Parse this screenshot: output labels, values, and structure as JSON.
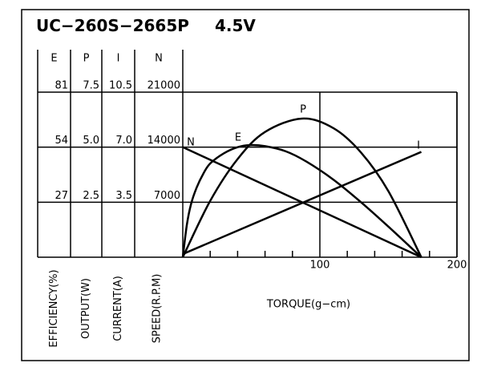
{
  "chart_data": {
    "type": "line",
    "title": "UC−260S−2665P",
    "subtitle": "4.5V",
    "x_label": "TORQUE(g−cm)",
    "xlim": [
      0,
      200
    ],
    "xticks": [
      100,
      200
    ],
    "xminorticks": [
      20,
      40,
      60,
      80,
      120,
      140,
      160,
      180
    ],
    "grid": true,
    "series": [
      {
        "name": "E",
        "axis_label": "EFFICIENCY(%)",
        "color": "#000000",
        "ylim": [
          0,
          81
        ],
        "yticks": [
          27,
          54,
          81
        ],
        "x": [
          0,
          3,
          6,
          10,
          15,
          20,
          30,
          40,
          49,
          60,
          75,
          90,
          110,
          130,
          150,
          174
        ],
        "values": [
          0,
          16,
          26,
          34,
          41,
          46,
          51,
          54,
          55,
          54.5,
          52,
          47,
          38,
          27,
          15,
          0
        ]
      },
      {
        "name": "P",
        "axis_label": "OUTPUT(W)",
        "color": "#000000",
        "ylim": [
          0,
          7.5
        ],
        "yticks": [
          2.5,
          {
            "value": 5,
            "label": "5.0"
          },
          7.5
        ],
        "x": [
          0,
          20,
          40,
          60,
          87,
          110,
          130,
          150,
          174
        ],
        "values": [
          0,
          2.56,
          4.46,
          5.69,
          6.3,
          5.86,
          4.76,
          3.0,
          0
        ]
      },
      {
        "name": "I",
        "axis_label": "CURRENT(A)",
        "color": "#000000",
        "ylim": [
          0,
          10.5
        ],
        "yticks": [
          3.5,
          {
            "value": 7,
            "label": "7.0"
          },
          10.5
        ],
        "x": [
          0,
          174
        ],
        "values": [
          0.2,
          6.7
        ]
      },
      {
        "name": "N",
        "axis_label": "SPEED(R.P.M)",
        "color": "#000000",
        "ylim": [
          0,
          21000
        ],
        "yticks": [
          7000,
          14000,
          21000
        ],
        "x": [
          0,
          174
        ],
        "values": [
          14000,
          0
        ]
      }
    ]
  }
}
